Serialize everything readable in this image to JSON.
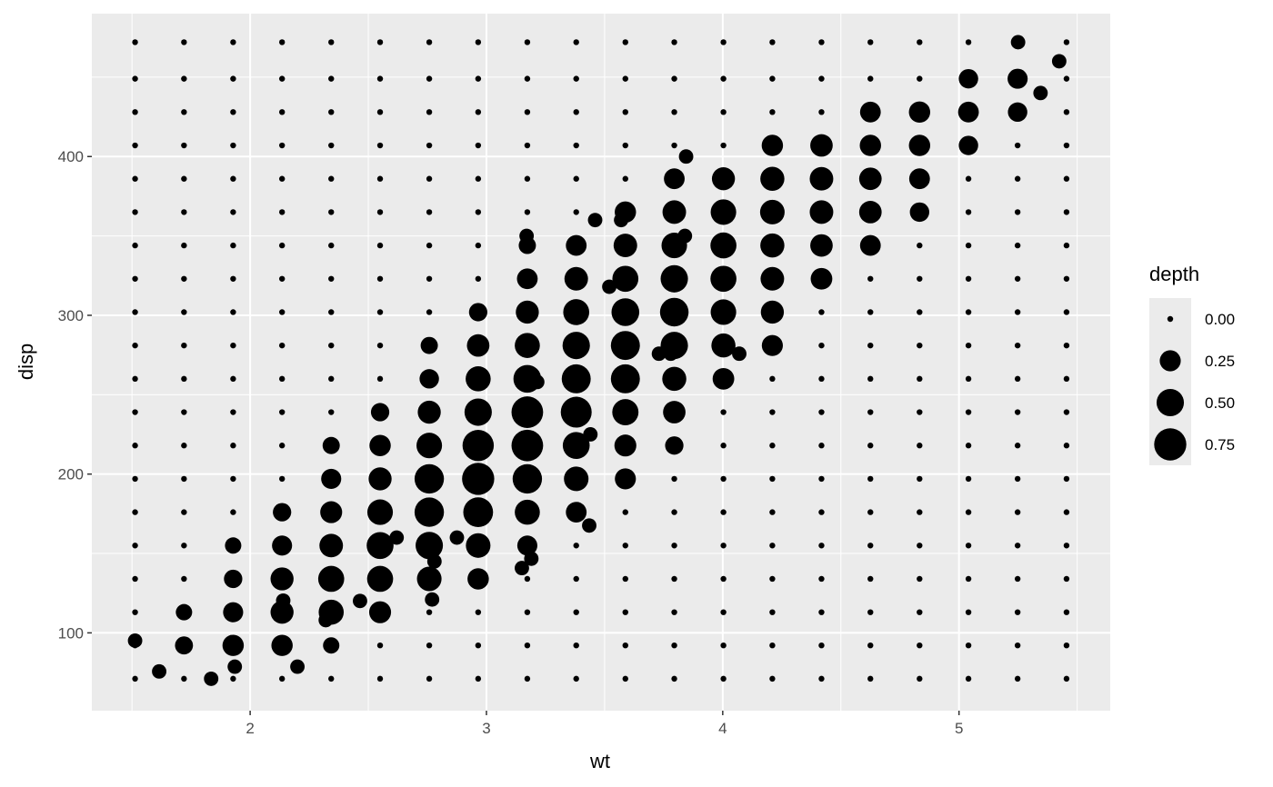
{
  "chart_data": {
    "type": "scatter",
    "title": "",
    "xlabel": "wt",
    "ylabel": "disp",
    "xlim": [
      1.33,
      5.64
    ],
    "ylim": [
      51,
      490
    ],
    "x_ticks": [
      2,
      3,
      4,
      5
    ],
    "x_tick_labels": [
      "2",
      "3",
      "4",
      "5"
    ],
    "y_ticks": [
      100,
      200,
      300,
      400
    ],
    "y_tick_labels": [
      "100",
      "200",
      "300",
      "400"
    ],
    "grid": true,
    "panel_background": "#ebebeb",
    "grid_color": "#ffffff",
    "point_color": "#000000",
    "size_legend": {
      "title": "depth",
      "position": "right",
      "entries": [
        {
          "label": "0.00",
          "value": 0.0
        },
        {
          "label": "0.25",
          "value": 0.25
        },
        {
          "label": "0.50",
          "value": 0.5
        },
        {
          "label": "0.75",
          "value": 0.75
        }
      ]
    },
    "grid_points": {
      "x": [
        1.513,
        1.72,
        1.928,
        2.135,
        2.343,
        2.55,
        2.758,
        2.965,
        3.173,
        3.38,
        3.588,
        3.795,
        4.003,
        4.21,
        4.418,
        4.625,
        4.833,
        5.04,
        5.248,
        5.455
      ],
      "y": [
        71.1,
        92.1,
        113.0,
        134.0,
        155.0,
        176.0,
        197.0,
        218.0,
        239.0,
        260.0,
        281.0,
        302.0,
        323.0,
        344.0,
        365.0,
        386.0,
        407.0,
        428.0,
        449.0,
        472.0
      ],
      "depth_rows": [
        [
          0,
          0,
          0,
          0,
          0,
          0,
          0,
          0,
          0,
          0,
          0,
          0,
          0,
          0,
          0,
          0,
          0,
          0,
          0,
          0
        ],
        [
          0,
          0.16,
          0.26,
          0.26,
          0.12,
          0,
          0,
          0,
          0,
          0,
          0,
          0,
          0,
          0,
          0,
          0,
          0,
          0,
          0,
          0
        ],
        [
          0,
          0.12,
          0.22,
          0.32,
          0.4,
          0.28,
          0,
          0,
          0,
          0,
          0,
          0,
          0,
          0,
          0,
          0,
          0,
          0,
          0,
          0
        ],
        [
          0,
          0,
          0.17,
          0.32,
          0.44,
          0.44,
          0.38,
          0.26,
          0,
          0,
          0,
          0,
          0,
          0,
          0,
          0,
          0,
          0,
          0,
          0
        ],
        [
          0,
          0,
          0.12,
          0.22,
          0.34,
          0.48,
          0.5,
          0.38,
          0.22,
          0,
          0,
          0,
          0,
          0,
          0,
          0,
          0,
          0,
          0,
          0
        ],
        [
          0,
          0,
          0,
          0.17,
          0.28,
          0.42,
          0.6,
          0.62,
          0.4,
          0.24,
          0,
          0,
          0,
          0,
          0,
          0,
          0,
          0,
          0,
          0
        ],
        [
          0,
          0,
          0,
          0,
          0.22,
          0.32,
          0.6,
          0.75,
          0.6,
          0.38,
          0.25,
          0,
          0,
          0,
          0,
          0,
          0,
          0,
          0,
          0
        ],
        [
          0,
          0,
          0,
          0,
          0.14,
          0.26,
          0.42,
          0.7,
          0.72,
          0.48,
          0.28,
          0.17,
          0,
          0,
          0,
          0,
          0,
          0,
          0,
          0
        ],
        [
          0,
          0,
          0,
          0,
          0,
          0.17,
          0.32,
          0.5,
          0.72,
          0.68,
          0.45,
          0.3,
          0,
          0,
          0,
          0,
          0,
          0,
          0,
          0
        ],
        [
          0,
          0,
          0,
          0,
          0,
          0,
          0.2,
          0.4,
          0.52,
          0.58,
          0.58,
          0.36,
          0.27,
          0,
          0,
          0,
          0,
          0,
          0,
          0
        ],
        [
          0,
          0,
          0,
          0,
          0,
          0,
          0.14,
          0.3,
          0.4,
          0.5,
          0.58,
          0.5,
          0.36,
          0.25,
          0,
          0,
          0,
          0,
          0,
          0
        ],
        [
          0,
          0,
          0,
          0,
          0,
          0,
          0,
          0.17,
          0.32,
          0.44,
          0.52,
          0.56,
          0.42,
          0.32,
          0,
          0,
          0,
          0,
          0,
          0
        ],
        [
          0,
          0,
          0,
          0,
          0,
          0,
          0,
          0,
          0.24,
          0.34,
          0.44,
          0.5,
          0.44,
          0.34,
          0.27,
          0,
          0,
          0,
          0,
          0
        ],
        [
          0,
          0,
          0,
          0,
          0,
          0,
          0,
          0,
          0.14,
          0.24,
          0.34,
          0.42,
          0.44,
          0.36,
          0.3,
          0.24,
          0,
          0,
          0,
          0
        ],
        [
          0,
          0,
          0,
          0,
          0,
          0,
          0,
          0,
          0,
          0,
          0.26,
          0.34,
          0.42,
          0.38,
          0.34,
          0.3,
          0.2,
          0,
          0,
          0
        ],
        [
          0,
          0,
          0,
          0,
          0,
          0,
          0,
          0,
          0,
          0,
          0,
          0.24,
          0.32,
          0.36,
          0.34,
          0.3,
          0.24,
          0,
          0,
          0
        ],
        [
          0,
          0,
          0,
          0,
          0,
          0,
          0,
          0,
          0,
          0,
          0,
          0,
          0,
          0.26,
          0.3,
          0.26,
          0.26,
          0.2,
          0,
          0
        ],
        [
          0,
          0,
          0,
          0,
          0,
          0,
          0,
          0,
          0,
          0,
          0,
          0,
          0,
          0,
          0,
          0.24,
          0.26,
          0.24,
          0.2,
          0
        ],
        [
          0,
          0,
          0,
          0,
          0,
          0,
          0,
          0,
          0,
          0,
          0,
          0,
          0,
          0,
          0,
          0,
          0,
          0.2,
          0.22,
          0
        ],
        [
          0,
          0,
          0,
          0,
          0,
          0,
          0,
          0,
          0,
          0,
          0,
          0,
          0,
          0,
          0,
          0,
          0,
          0,
          0,
          0
        ]
      ]
    },
    "observations": [
      {
        "x": 1.513,
        "y": 95.1,
        "depth": 0.08
      },
      {
        "x": 1.615,
        "y": 75.7,
        "depth": 0.08
      },
      {
        "x": 1.835,
        "y": 71.1,
        "depth": 0.08
      },
      {
        "x": 1.935,
        "y": 78.7,
        "depth": 0.08
      },
      {
        "x": 2.14,
        "y": 120.3,
        "depth": 0.08
      },
      {
        "x": 2.2,
        "y": 78.7,
        "depth": 0.08
      },
      {
        "x": 2.32,
        "y": 108.0,
        "depth": 0.08
      },
      {
        "x": 2.465,
        "y": 120.1,
        "depth": 0.08
      },
      {
        "x": 2.62,
        "y": 160.0,
        "depth": 0.08
      },
      {
        "x": 2.77,
        "y": 121.0,
        "depth": 0.08
      },
      {
        "x": 2.78,
        "y": 145.0,
        "depth": 0.08
      },
      {
        "x": 2.875,
        "y": 160.0,
        "depth": 0.08
      },
      {
        "x": 3.15,
        "y": 140.8,
        "depth": 0.08
      },
      {
        "x": 3.17,
        "y": 350.0,
        "depth": 0.08
      },
      {
        "x": 3.19,
        "y": 146.7,
        "depth": 0.08
      },
      {
        "x": 3.215,
        "y": 258.0,
        "depth": 0.08
      },
      {
        "x": 3.435,
        "y": 167.6,
        "depth": 0.08
      },
      {
        "x": 3.44,
        "y": 225.0,
        "depth": 0.08
      },
      {
        "x": 3.46,
        "y": 360.0,
        "depth": 0.08
      },
      {
        "x": 3.52,
        "y": 318.0,
        "depth": 0.08
      },
      {
        "x": 3.57,
        "y": 360.0,
        "depth": 0.08
      },
      {
        "x": 3.73,
        "y": 275.8,
        "depth": 0.08
      },
      {
        "x": 3.78,
        "y": 275.8,
        "depth": 0.08
      },
      {
        "x": 3.84,
        "y": 350.0,
        "depth": 0.08
      },
      {
        "x": 3.845,
        "y": 400.0,
        "depth": 0.08
      },
      {
        "x": 4.07,
        "y": 275.8,
        "depth": 0.08
      },
      {
        "x": 5.25,
        "y": 472.0,
        "depth": 0.08
      },
      {
        "x": 5.345,
        "y": 440.0,
        "depth": 0.08
      },
      {
        "x": 5.424,
        "y": 460.0,
        "depth": 0.08
      }
    ]
  }
}
